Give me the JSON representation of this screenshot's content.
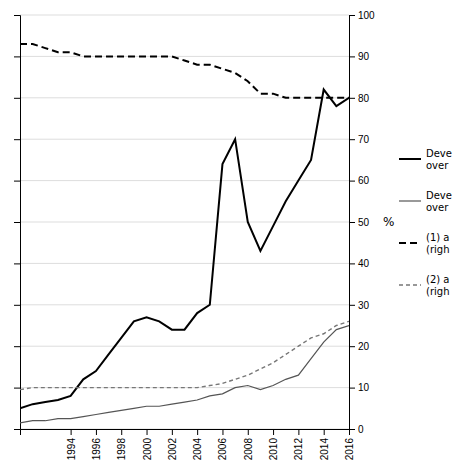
{
  "chart_data": {
    "type": "line",
    "x": [
      1990,
      1991,
      1992,
      1993,
      1994,
      1995,
      1996,
      1997,
      1998,
      1999,
      2000,
      2001,
      2002,
      2003,
      2004,
      2005,
      2006,
      2007,
      2008,
      2009,
      2010,
      2011,
      2012,
      2013,
      2014,
      2015,
      2016
    ],
    "series": [
      {
        "name": "Deve\nover",
        "color": "#000000",
        "line_style": "solid",
        "values": [
          5,
          6,
          6.5,
          7,
          8,
          12,
          14,
          18,
          22,
          26,
          27,
          26,
          24,
          24,
          28,
          30,
          64,
          70,
          50,
          43,
          49,
          55,
          60,
          65,
          82,
          78,
          80
        ]
      },
      {
        "name": "Deve\nover",
        "color": "#555555",
        "line_style": "solid",
        "values": [
          1.5,
          2,
          2,
          2.5,
          2.5,
          3,
          3.5,
          4,
          4.5,
          5,
          5.5,
          5.5,
          6,
          6.5,
          7,
          8,
          8.5,
          10,
          10.5,
          9.5,
          10.5,
          12,
          13,
          17,
          21,
          24,
          25
        ]
      },
      {
        "name": "(1) a\n(righ",
        "color": "#000000",
        "line_style": "dashed",
        "values": [
          93,
          93,
          92,
          91,
          91,
          90,
          90,
          90,
          90,
          90,
          90,
          90,
          90,
          89,
          88,
          88,
          87,
          86,
          84,
          81,
          81,
          80,
          80,
          80,
          80,
          80,
          80
        ]
      },
      {
        "name": "(2) a\n(righ",
        "color": "#777777",
        "line_style": "dashed",
        "values": [
          9.5,
          10,
          10,
          10,
          10,
          10,
          10,
          10,
          10,
          10,
          10,
          10,
          10,
          10,
          10,
          10.5,
          11,
          12,
          13,
          14.5,
          16,
          18,
          20,
          22,
          23,
          25,
          26
        ]
      }
    ],
    "xlim": [
      1990,
      2016
    ],
    "xticks": [
      1994,
      1996,
      1998,
      2000,
      2002,
      2004,
      2006,
      2008,
      2010,
      2012,
      2014,
      2016
    ],
    "ylim": [
      0,
      100
    ],
    "yticks": [
      0,
      10,
      20,
      30,
      40,
      50,
      60,
      70,
      80,
      90,
      100
    ],
    "grid": true,
    "legend": "right",
    "annotations": [
      {
        "text": "%"
      }
    ]
  }
}
